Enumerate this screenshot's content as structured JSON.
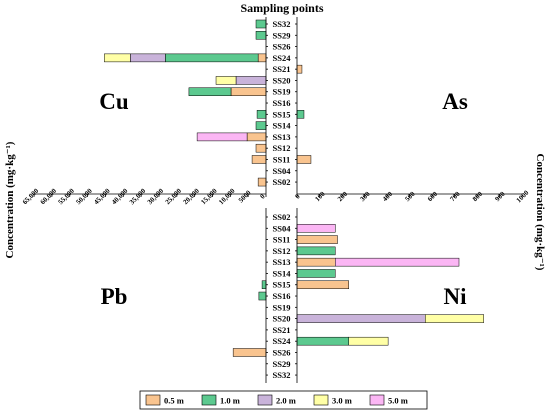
{
  "chart_data": {
    "type": "bar",
    "orientation": "horizontal",
    "stacked": true,
    "title": "Sampling points",
    "legend": "bottom",
    "series": [
      {
        "name": "0.5 m",
        "color": "#F9C48F"
      },
      {
        "name": "1.0 m",
        "color": "#5CC98F"
      },
      {
        "name": "2.0 m",
        "color": "#C9B3DA"
      },
      {
        "name": "3.0 m",
        "color": "#FFFFA6"
      },
      {
        "name": "5.0 m",
        "color": "#FBB6F4"
      }
    ],
    "left_axis": {
      "label": "Concentration (mg·kg⁻¹)",
      "xlim": [
        0,
        65000
      ],
      "reversed": true,
      "tick_labels": [
        "65,000",
        "60,000",
        "55,000",
        "50,000",
        "45,000",
        "40,000",
        "35,000",
        "30,000",
        "25,000",
        "20,000",
        "15,000",
        "10,000",
        "5000",
        "0"
      ]
    },
    "right_axis": {
      "label": "Concentration (mg·kg⁻¹)",
      "xlim": [
        0,
        1000
      ],
      "reversed": false,
      "tick_labels": [
        "0",
        "100",
        "200",
        "300",
        "400",
        "500",
        "600",
        "700",
        "800",
        "900",
        "1000"
      ]
    },
    "groups": [
      {
        "position": "top",
        "categories": [
          "SS32",
          "SS29",
          "SS26",
          "SS24",
          "SS21",
          "SS20",
          "SS19",
          "SS16",
          "SS15",
          "SS14",
          "SS13",
          "SS12",
          "SS11",
          "SS04",
          "SS02"
        ],
        "left": {
          "title": "Cu",
          "values": [
            [
              0,
              0,
              0,
              2200,
              0,
              0,
              9800,
              0,
              0,
              0,
              5300,
              2800,
              3900,
              0,
              2200
            ],
            [
              2800,
              2800,
              0,
              26000,
              0,
              0,
              11800,
              0,
              2500,
              2800,
              0,
              0,
              0,
              0,
              0
            ],
            [
              0,
              0,
              0,
              9800,
              0,
              8400,
              0,
              0,
              0,
              0,
              0,
              0,
              0,
              0,
              0
            ],
            [
              0,
              0,
              0,
              7300,
              0,
              5600,
              0,
              0,
              0,
              0,
              0,
              0,
              0,
              0,
              0
            ],
            [
              0,
              0,
              0,
              0,
              0,
              0,
              0,
              0,
              0,
              0,
              14000,
              0,
              0,
              0,
              0
            ]
          ]
        },
        "right": {
          "title": "As",
          "values": [
            [
              0,
              0,
              0,
              0,
              22,
              0,
              0,
              0,
              0,
              0,
              0,
              0,
              62,
              0,
              0
            ],
            [
              0,
              0,
              0,
              0,
              0,
              0,
              0,
              0,
              31,
              0,
              0,
              0,
              0,
              0,
              0
            ],
            [
              0,
              0,
              0,
              0,
              0,
              0,
              0,
              0,
              0,
              0,
              0,
              0,
              0,
              0,
              0
            ],
            [
              0,
              0,
              0,
              0,
              0,
              0,
              0,
              0,
              0,
              0,
              0,
              0,
              0,
              0,
              0
            ],
            [
              0,
              0,
              0,
              0,
              0,
              0,
              0,
              0,
              0,
              0,
              0,
              0,
              0,
              0,
              0
            ]
          ]
        }
      },
      {
        "position": "bottom",
        "categories": [
          "SS02",
          "SS04",
          "SS11",
          "SS12",
          "SS13",
          "SS14",
          "SS15",
          "SS16",
          "SS19",
          "SS20",
          "SS21",
          "SS24",
          "SS26",
          "SS29",
          "SS32"
        ],
        "left": {
          "title": "Pb",
          "values": [
            [
              0,
              0,
              0,
              0,
              0,
              0,
              0,
              0,
              0,
              0,
              0,
              0,
              9200,
              0,
              0
            ],
            [
              0,
              0,
              0,
              0,
              0,
              0,
              1100,
              2000,
              0,
              0,
              0,
              0,
              0,
              0,
              0
            ],
            [
              0,
              0,
              0,
              0,
              0,
              0,
              0,
              0,
              0,
              0,
              0,
              0,
              0,
              0,
              0
            ],
            [
              0,
              0,
              0,
              0,
              0,
              0,
              0,
              0,
              0,
              0,
              0,
              0,
              0,
              0,
              0
            ],
            [
              0,
              0,
              0,
              0,
              0,
              0,
              0,
              0,
              0,
              0,
              0,
              0,
              0,
              0,
              0
            ]
          ]
        },
        "right": {
          "title": "Ni",
          "values": [
            [
              0,
              0,
              180,
              0,
              170,
              0,
              230,
              0,
              0,
              0,
              0,
              0,
              0,
              0,
              0
            ],
            [
              0,
              0,
              0,
              170,
              0,
              170,
              0,
              0,
              0,
              0,
              0,
              230,
              0,
              0,
              0
            ],
            [
              0,
              0,
              0,
              0,
              0,
              0,
              0,
              0,
              0,
              570,
              0,
              0,
              0,
              0,
              0
            ],
            [
              0,
              0,
              0,
              0,
              0,
              0,
              0,
              0,
              0,
              260,
              0,
              175,
              0,
              0,
              0
            ],
            [
              0,
              170,
              0,
              0,
              550,
              0,
              0,
              0,
              0,
              0,
              0,
              0,
              0,
              0,
              0
            ]
          ]
        }
      }
    ]
  }
}
